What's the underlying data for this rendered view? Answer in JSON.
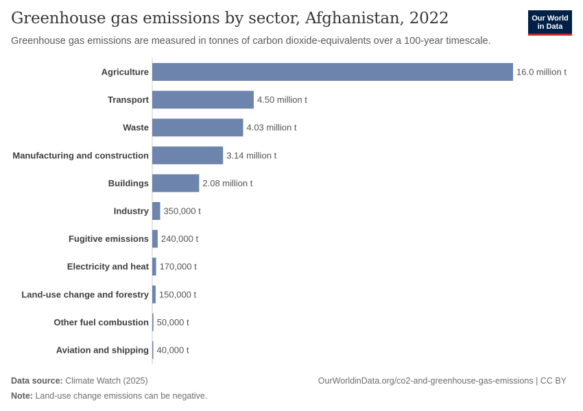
{
  "header": {
    "title": "Greenhouse gas emissions by sector, Afghanistan, 2022",
    "subtitle": "Greenhouse gas emissions are measured in tonnes of carbon dioxide-equivalents over a 100-year timescale.",
    "logo_line1": "Our World",
    "logo_line2": "in Data"
  },
  "footer": {
    "source_label": "Data source:",
    "source_value": "Climate Watch (2025)",
    "note_label": "Note:",
    "note_value": "Land-use change emissions can be negative.",
    "url": "OurWorldinData.org/co2-and-greenhouse-gas-emissions | CC BY"
  },
  "colors": {
    "bar": "#6d84ad",
    "axis": "#cccccc",
    "logo_bg": "#002147",
    "logo_accent": "#ce261e"
  },
  "chart_data": {
    "type": "bar",
    "orientation": "horizontal",
    "title": "Greenhouse gas emissions by sector, Afghanistan, 2022",
    "subtitle": "Greenhouse gas emissions are measured in tonnes of carbon dioxide-equivalents over a 100-year timescale.",
    "categories": [
      "Agriculture",
      "Transport",
      "Waste",
      "Manufacturing and construction",
      "Buildings",
      "Industry",
      "Fugitive emissions",
      "Electricity and heat",
      "Land-use change and forestry",
      "Other fuel combustion",
      "Aviation and shipping"
    ],
    "values": [
      16000000,
      4500000,
      4030000,
      3140000,
      2080000,
      350000,
      240000,
      170000,
      150000,
      50000,
      40000
    ],
    "value_labels": [
      "16.0 million t",
      "4.50 million t",
      "4.03 million t",
      "3.14 million t",
      "2.08 million t",
      "350,000 t",
      "240,000 t",
      "170,000 t",
      "150,000 t",
      "50,000 t",
      "40,000 t"
    ],
    "xlim": [
      0,
      16000000
    ],
    "grid": false
  }
}
